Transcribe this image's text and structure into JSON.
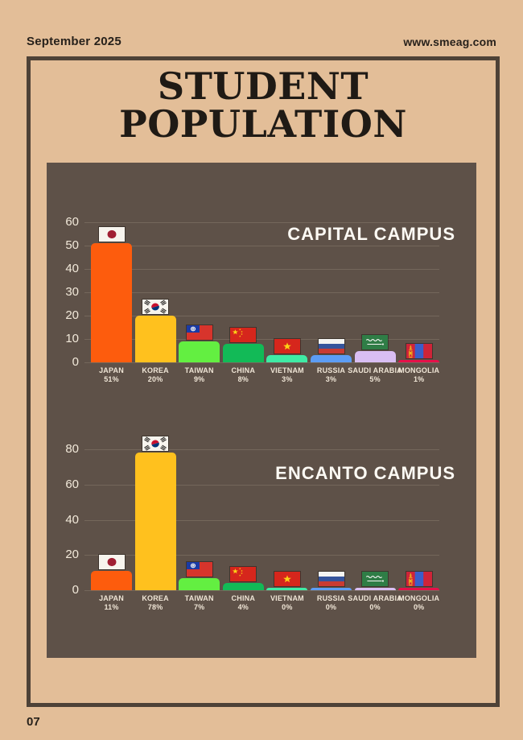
{
  "header": {
    "date": "September 2025",
    "website": "www.smeag.com"
  },
  "title": {
    "line1": "STUDENT",
    "line2": "POPULATION"
  },
  "footer": {
    "page_number": "07"
  },
  "colors": {
    "page_background": "#e3be98",
    "frame_border": "#4e4237",
    "panel_background": "#5e5148",
    "gridline": "#74675b",
    "light_text": "#f2e9da",
    "dark_text": "#27211b"
  },
  "countries": [
    {
      "name": "JAPAN",
      "flag_icon": "flag-japan-icon",
      "bar_color": "#fd5c0d"
    },
    {
      "name": "KOREA",
      "flag_icon": "flag-korea-icon",
      "bar_color": "#ffc11e"
    },
    {
      "name": "TAIWAN",
      "flag_icon": "flag-taiwan-icon",
      "bar_color": "#63ef41"
    },
    {
      "name": "CHINA",
      "flag_icon": "flag-china-icon",
      "bar_color": "#12ba57"
    },
    {
      "name": "VIETNAM",
      "flag_icon": "flag-vietnam-icon",
      "bar_color": "#3feba5"
    },
    {
      "name": "RUSSIA",
      "flag_icon": "flag-russia-icon",
      "bar_color": "#5c9df5"
    },
    {
      "name": "SAUDI ARABIA",
      "flag_icon": "flag-saudi-arabia-icon",
      "bar_color": "#d9bef3"
    },
    {
      "name": "MONGOLIA",
      "flag_icon": "flag-mongolia-icon",
      "bar_color": "#e51049"
    }
  ],
  "chart_data": [
    {
      "type": "bar",
      "title": "CAPITAL CAMPUS",
      "categories": [
        "JAPAN",
        "KOREA",
        "TAIWAN",
        "CHINA",
        "VIETNAM",
        "RUSSIA",
        "SAUDI ARABIA",
        "MONGOLIA"
      ],
      "values": [
        51,
        20,
        9,
        8,
        3,
        3,
        5,
        1
      ],
      "value_labels": [
        "51%",
        "20%",
        "9%",
        "8%",
        "3%",
        "3%",
        "5%",
        "1%"
      ],
      "xlabel": "",
      "ylabel": "",
      "ylim": [
        0,
        60
      ],
      "yticks": [
        0,
        10,
        20,
        30,
        40,
        50,
        60
      ],
      "grid": true,
      "legend": false
    },
    {
      "type": "bar",
      "title": "ENCANTO CAMPUS",
      "categories": [
        "JAPAN",
        "KOREA",
        "TAIWAN",
        "CHINA",
        "VIETNAM",
        "RUSSIA",
        "SAUDI ARABIA",
        "MONGOLIA"
      ],
      "values": [
        11,
        78,
        7,
        4,
        0,
        0,
        0,
        0
      ],
      "value_labels": [
        "11%",
        "78%",
        "7%",
        "4%",
        "0%",
        "0%",
        "0%",
        "0%"
      ],
      "xlabel": "",
      "ylabel": "",
      "ylim": [
        0,
        80
      ],
      "yticks": [
        0,
        20,
        40,
        60,
        80
      ],
      "grid": true,
      "legend": false
    }
  ]
}
